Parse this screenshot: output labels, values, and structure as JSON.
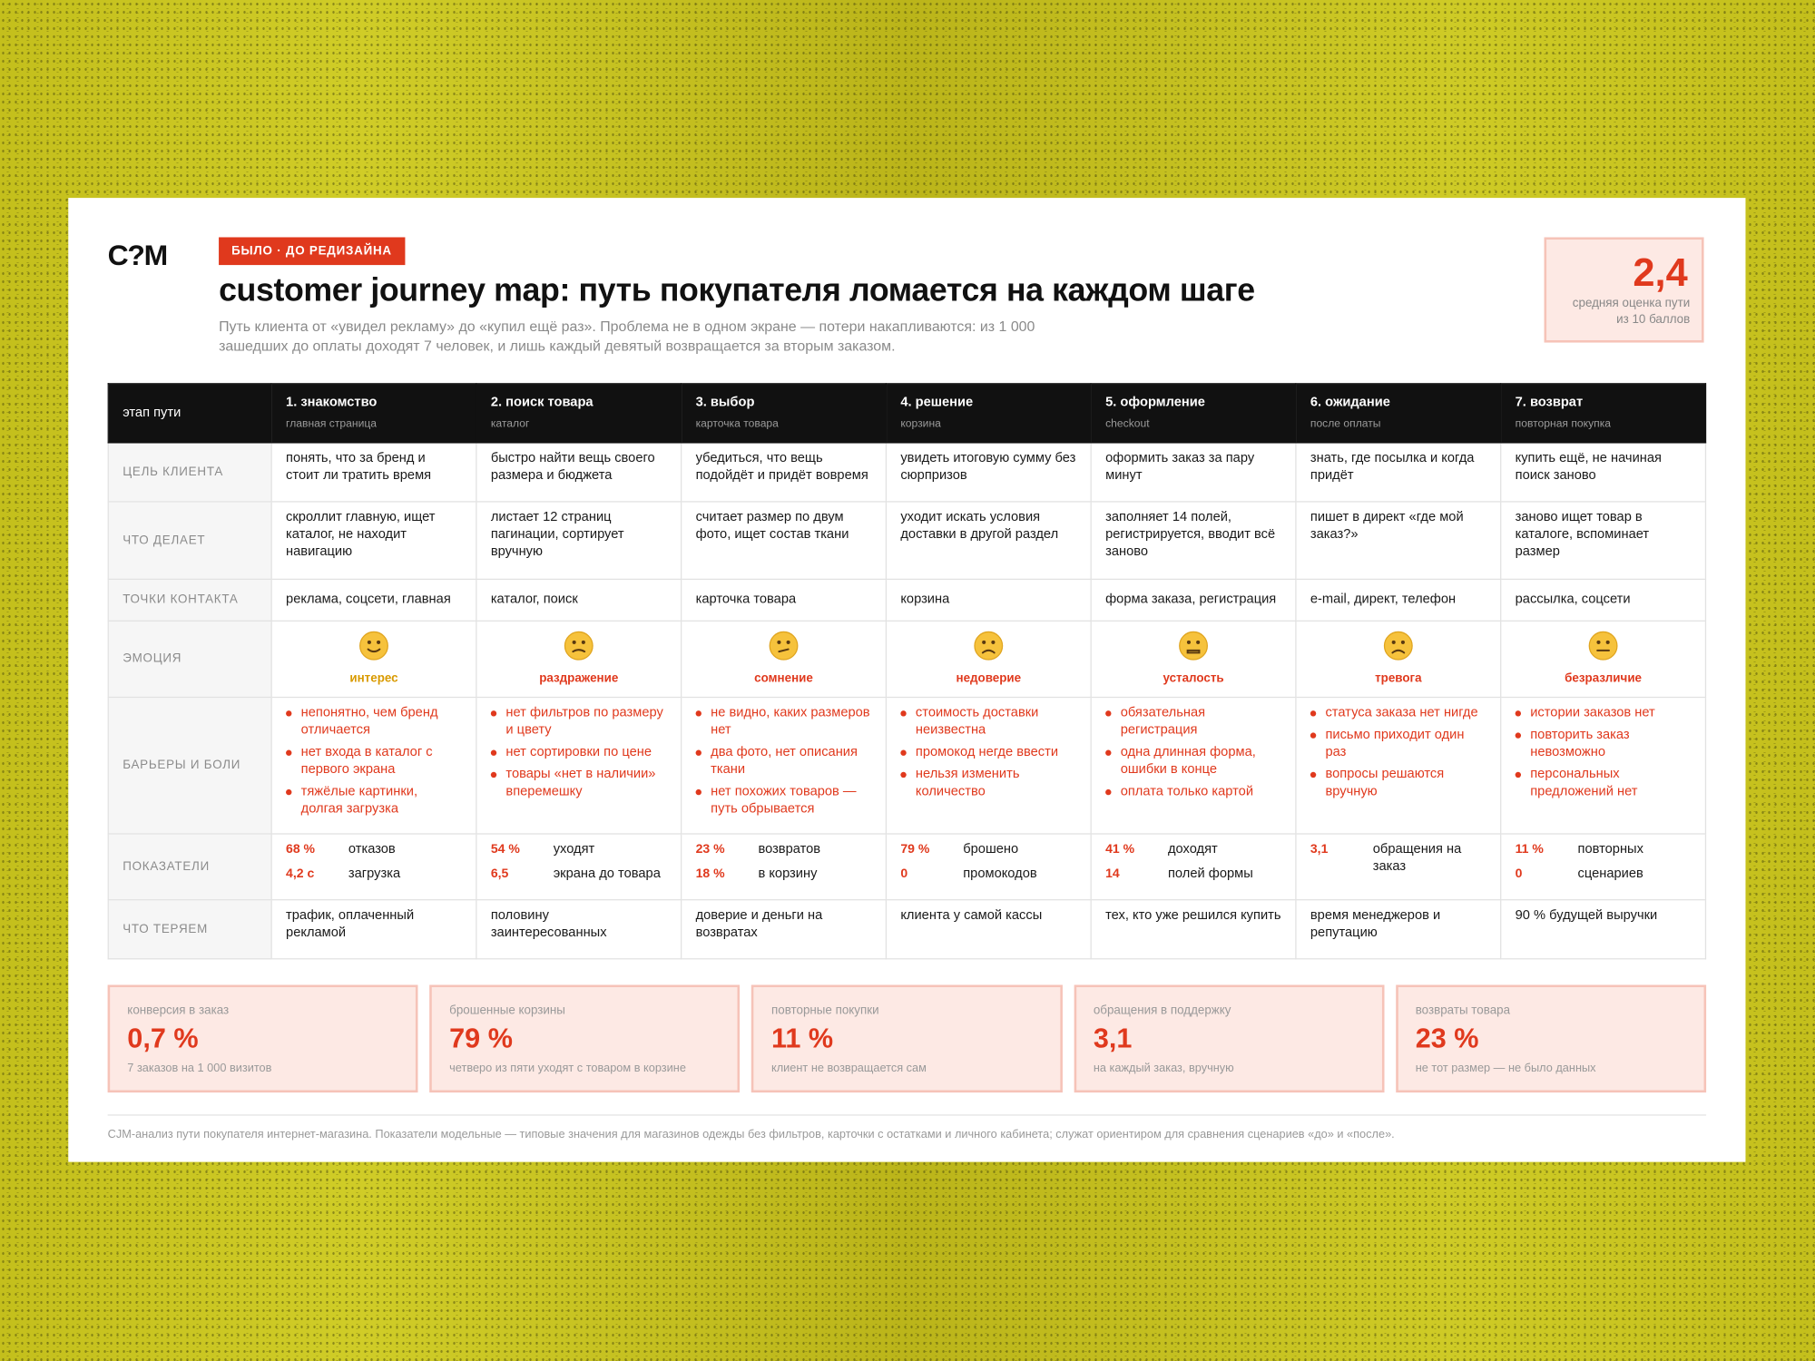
{
  "header": {
    "logo": "C?M",
    "badge": "БЫЛО · ДО РЕДИЗАЙНА",
    "title": "customer journey map: путь покупателя ломается на каждом шаге",
    "subtitle": "Путь клиента от «увидел рекламу» до «купил ещё раз». Проблема не в одном экране — потери накапливаются: из 1 000 зашедших до оплаты доходят 7 человек, и лишь каждый девятый возвращается за вторым заказом.",
    "score": {
      "value": "2,4",
      "label": "средняя оценка пути из 10 баллов"
    }
  },
  "table": {
    "corner": "этап пути",
    "stages": [
      {
        "title": "1. знакомство",
        "subtitle": "главная страница"
      },
      {
        "title": "2. поиск товара",
        "subtitle": "каталог"
      },
      {
        "title": "3. выбор",
        "subtitle": "карточка товара"
      },
      {
        "title": "4. решение",
        "subtitle": "корзина"
      },
      {
        "title": "5. оформление",
        "subtitle": "checkout"
      },
      {
        "title": "6. ожидание",
        "subtitle": "после оплаты"
      },
      {
        "title": "7. возврат",
        "subtitle": "повторная покупка"
      }
    ],
    "rows": [
      {
        "label": "цель клиента",
        "cells": [
          "понять, что за бренд и стоит ли тратить время",
          "быстро найти вещь своего размера и бюджета",
          "убедиться, что вещь подойдёт и придёт вовремя",
          "увидеть итоговую сумму без сюрпризов",
          "оформить заказ за пару минут",
          "знать, где посылка и когда придёт",
          "купить ещё, не начиная поиск заново"
        ]
      },
      {
        "label": "что делает",
        "cells": [
          "скроллит главную, ищет каталог, не находит навигацию",
          "листает 12 страниц пагинации, сортирует вручную",
          "считает размер по двум фото, ищет состав ткани",
          "уходит искать условия доставки в другой раздел",
          "заполняет 14 полей, регистрируется, вводит всё заново",
          "пишет в директ «где мой заказ?»",
          "заново ищет товар в каталоге, вспоминает размер"
        ]
      },
      {
        "label": "точки контакта",
        "cells": [
          "реклама, соцсети, главная",
          "каталог, поиск",
          "карточка товара",
          "корзина",
          "форма заказа, регистрация",
          "e-mail, директ, телефон",
          "рассылка, соцсети"
        ]
      },
      {
        "label": "эмоция",
        "cells": [
          "интерес",
          "раздражение",
          "сомнение",
          "недоверие",
          "усталость",
          "тревога",
          "безразличие"
        ]
      },
      {
        "label": "барьеры и боли",
        "cells": [
          [
            "непонятно, чем бренд отличается",
            "нет входа в каталог с первого экрана",
            "тяжёлые картинки, долгая загрузка"
          ],
          [
            "нет фильтров по размеру и цвету",
            "нет сортировки по цене",
            "товары «нет в наличии» вперемешку"
          ],
          [
            "не видно, каких размеров нет",
            "два фото, нет описания ткани",
            "нет похожих товаров — путь обрывается"
          ],
          [
            "стоимость доставки неизвестна",
            "промокод негде ввести",
            "нельзя изменить количество"
          ],
          [
            "обязательная регистрация",
            "одна длинная форма, ошибки в конце",
            "оплата только картой"
          ],
          [
            "статуса заказа нет нигде",
            "письмо приходит один раз",
            "вопросы решаются вручную"
          ],
          [
            "истории заказов нет",
            "повторить заказ невозможно",
            "персональных предложений нет"
          ]
        ]
      },
      {
        "label": "показатели",
        "cells": [
          [
            {
              "value": "68 %",
              "label": "отказов"
            },
            {
              "value": "4,2 с",
              "label": "загрузка"
            }
          ],
          [
            {
              "value": "54 %",
              "label": "уходят"
            },
            {
              "value": "6,5",
              "label": "экрана до товара"
            }
          ],
          [
            {
              "value": "23 %",
              "label": "возвратов"
            },
            {
              "value": "18 %",
              "label": "в корзину"
            }
          ],
          [
            {
              "value": "79 %",
              "label": "брошено"
            },
            {
              "value": "0",
              "label": "промокодов"
            }
          ],
          [
            {
              "value": "41 %",
              "label": "доходят"
            },
            {
              "value": "14",
              "label": "полей формы"
            }
          ],
          [
            {
              "value": "3,1",
              "label": "обращения на заказ"
            }
          ],
          [
            {
              "value": "11 %",
              "label": "повторных"
            },
            {
              "value": "0",
              "label": "сценариев"
            }
          ]
        ]
      },
      {
        "label": "что теряем",
        "cells": [
          "трафик, оплаченный рекламой",
          "половину заинтересованных",
          "доверие и деньги на возвратах",
          "клиента у самой кассы",
          "тех, кто уже решился купить",
          "время менеджеров и репутацию",
          "90 % будущей выручки"
        ]
      }
    ]
  },
  "kpis": [
    {
      "label": "конверсия в заказ",
      "value": "0,7 %",
      "note": "7 заказов на 1 000 визитов"
    },
    {
      "label": "брошенные корзины",
      "value": "79 %",
      "note": "четверо из пяти уходят с товаром в корзине"
    },
    {
      "label": "повторные покупки",
      "value": "11 %",
      "note": "клиент не возвращается сам"
    },
    {
      "label": "обращения в поддержку",
      "value": "3,1",
      "note": "на каждый заказ, вручную"
    },
    {
      "label": "возвраты товара",
      "value": "23 %",
      "note": "не тот размер — не было данных"
    }
  ],
  "footnote": "CJM-анализ пути покупателя интернет-магазина. Показатели модельные — типовые значения для магазинов одежды без фильтров, карточки с остатками и личного кабинета; служат ориентиром для сравнения сценариев «до» и «после»."
}
